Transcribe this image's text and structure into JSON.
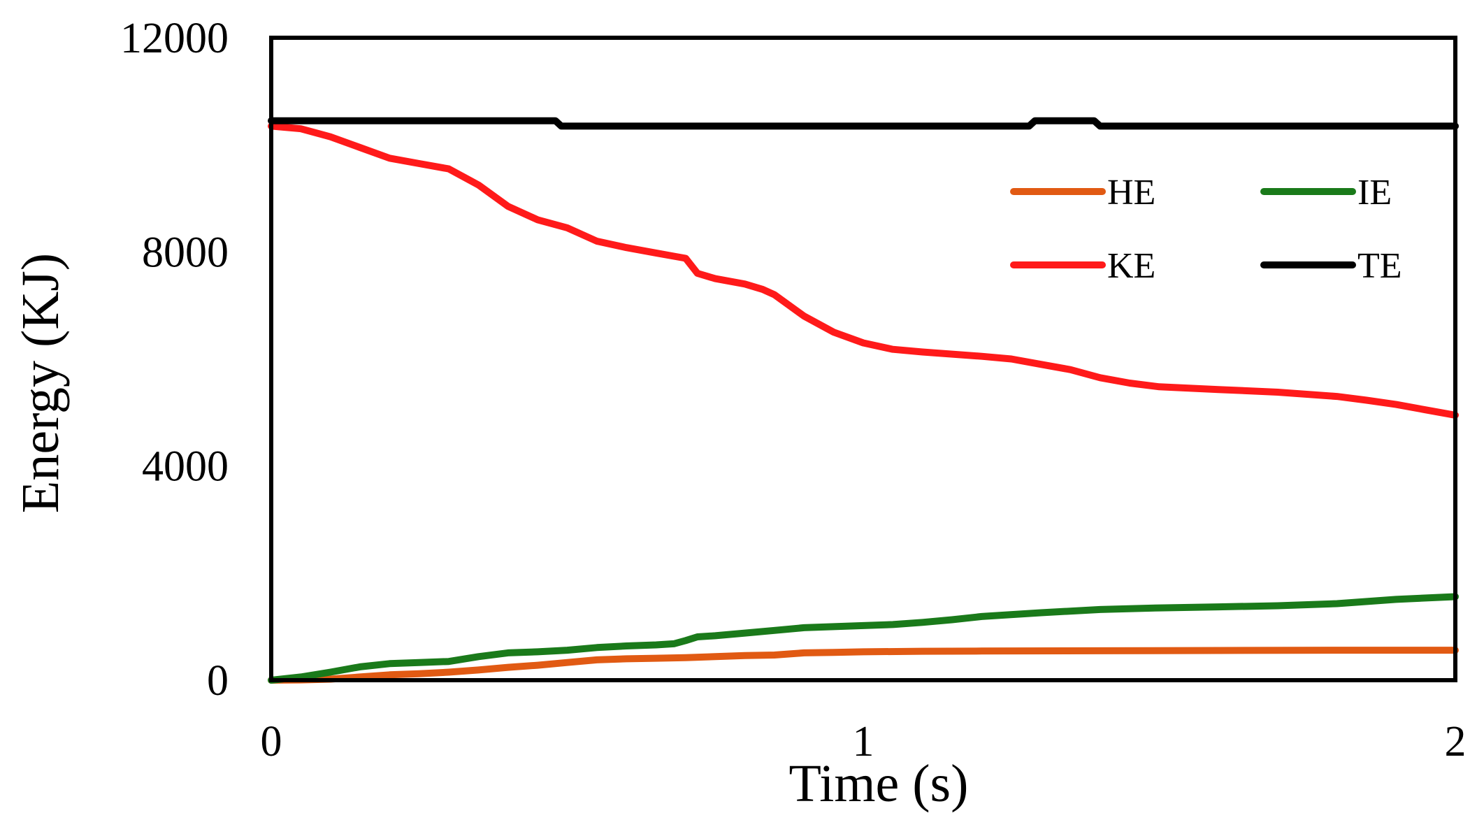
{
  "chart_data": {
    "type": "line",
    "title": "",
    "xlabel": "Time (s)",
    "ylabel": "Energy (KJ)",
    "xlim": [
      0,
      2
    ],
    "ylim": [
      0,
      12000
    ],
    "xticks": [
      0,
      1,
      2
    ],
    "xtick_labels": [
      "0",
      "1",
      "2"
    ],
    "yticks": [
      0,
      4000,
      8000,
      12000
    ],
    "ytick_labels": [
      "0",
      "4000",
      "8000",
      "12000"
    ],
    "grid": false,
    "legend_position": "upper-right",
    "legend_columns": 2,
    "series": [
      {
        "name": "HE",
        "color": "#E15A13",
        "points": [
          [
            0,
            0
          ],
          [
            0.05,
            5
          ],
          [
            0.1,
            20
          ],
          [
            0.15,
            60
          ],
          [
            0.2,
            100
          ],
          [
            0.25,
            120
          ],
          [
            0.3,
            150
          ],
          [
            0.35,
            190
          ],
          [
            0.4,
            240
          ],
          [
            0.45,
            280
          ],
          [
            0.5,
            330
          ],
          [
            0.55,
            380
          ],
          [
            0.6,
            400
          ],
          [
            0.65,
            410
          ],
          [
            0.7,
            420
          ],
          [
            0.75,
            440
          ],
          [
            0.8,
            460
          ],
          [
            0.85,
            470
          ],
          [
            0.9,
            510
          ],
          [
            0.95,
            520
          ],
          [
            1.0,
            530
          ],
          [
            1.1,
            540
          ],
          [
            1.2,
            545
          ],
          [
            1.4,
            550
          ],
          [
            1.6,
            555
          ],
          [
            1.8,
            560
          ],
          [
            2.0,
            560
          ]
        ]
      },
      {
        "name": "IE",
        "color": "#1A7A1A",
        "points": [
          [
            0,
            0
          ],
          [
            0.05,
            60
          ],
          [
            0.1,
            150
          ],
          [
            0.15,
            250
          ],
          [
            0.2,
            310
          ],
          [
            0.25,
            330
          ],
          [
            0.3,
            350
          ],
          [
            0.35,
            440
          ],
          [
            0.4,
            510
          ],
          [
            0.45,
            530
          ],
          [
            0.5,
            560
          ],
          [
            0.55,
            610
          ],
          [
            0.6,
            640
          ],
          [
            0.65,
            660
          ],
          [
            0.68,
            680
          ],
          [
            0.7,
            740
          ],
          [
            0.72,
            810
          ],
          [
            0.75,
            830
          ],
          [
            0.8,
            880
          ],
          [
            0.85,
            930
          ],
          [
            0.9,
            980
          ],
          [
            0.95,
            1000
          ],
          [
            1.0,
            1020
          ],
          [
            1.05,
            1040
          ],
          [
            1.1,
            1080
          ],
          [
            1.15,
            1130
          ],
          [
            1.2,
            1190
          ],
          [
            1.3,
            1260
          ],
          [
            1.4,
            1320
          ],
          [
            1.5,
            1350
          ],
          [
            1.6,
            1370
          ],
          [
            1.7,
            1390
          ],
          [
            1.8,
            1430
          ],
          [
            1.9,
            1510
          ],
          [
            2.0,
            1560
          ]
        ]
      },
      {
        "name": "KE",
        "color": "#FF1A1A",
        "points": [
          [
            0,
            10350
          ],
          [
            0.05,
            10300
          ],
          [
            0.1,
            10150
          ],
          [
            0.15,
            9950
          ],
          [
            0.2,
            9750
          ],
          [
            0.25,
            9650
          ],
          [
            0.3,
            9550
          ],
          [
            0.35,
            9250
          ],
          [
            0.4,
            8850
          ],
          [
            0.45,
            8600
          ],
          [
            0.5,
            8450
          ],
          [
            0.55,
            8200
          ],
          [
            0.6,
            8080
          ],
          [
            0.65,
            7980
          ],
          [
            0.68,
            7920
          ],
          [
            0.7,
            7880
          ],
          [
            0.72,
            7600
          ],
          [
            0.75,
            7500
          ],
          [
            0.8,
            7400
          ],
          [
            0.83,
            7300
          ],
          [
            0.85,
            7200
          ],
          [
            0.9,
            6800
          ],
          [
            0.95,
            6500
          ],
          [
            1.0,
            6300
          ],
          [
            1.05,
            6180
          ],
          [
            1.1,
            6130
          ],
          [
            1.2,
            6050
          ],
          [
            1.25,
            6000
          ],
          [
            1.3,
            5900
          ],
          [
            1.35,
            5800
          ],
          [
            1.4,
            5650
          ],
          [
            1.45,
            5550
          ],
          [
            1.5,
            5480
          ],
          [
            1.6,
            5430
          ],
          [
            1.7,
            5380
          ],
          [
            1.8,
            5300
          ],
          [
            1.85,
            5230
          ],
          [
            1.9,
            5150
          ],
          [
            1.95,
            5050
          ],
          [
            2.0,
            4950
          ]
        ]
      },
      {
        "name": "TE",
        "color": "#000000",
        "points": [
          [
            0,
            10450
          ],
          [
            0.48,
            10450
          ],
          [
            0.49,
            10350
          ],
          [
            1.28,
            10350
          ],
          [
            1.29,
            10450
          ],
          [
            1.39,
            10450
          ],
          [
            1.4,
            10350
          ],
          [
            2.0,
            10350
          ]
        ]
      }
    ]
  }
}
